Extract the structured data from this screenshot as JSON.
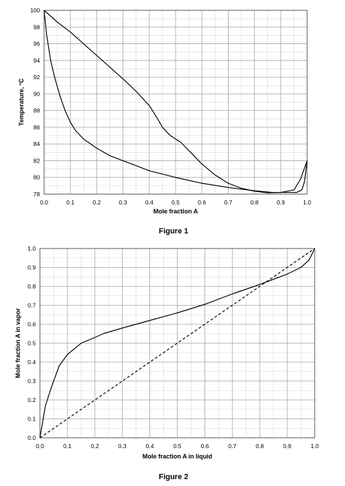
{
  "chart_data": [
    {
      "type": "line",
      "title": "",
      "caption": "Figure 1",
      "xlabel": "Mole fraction A",
      "ylabel": "Temperature, °C",
      "xlim": [
        0.0,
        1.0
      ],
      "ylim": [
        78,
        100
      ],
      "xticks": [
        0.0,
        0.1,
        0.2,
        0.3,
        0.4,
        0.5,
        0.6,
        0.7,
        0.8,
        0.9,
        1.0
      ],
      "xtick_labels": [
        "0.0",
        "0.1",
        "0.2",
        "0.3",
        "0.4",
        "0.5",
        "0.6",
        "0.7",
        "0.8",
        "0.9",
        "1.0"
      ],
      "yticks": [
        78,
        80,
        82,
        84,
        86,
        88,
        90,
        92,
        94,
        96,
        98,
        100
      ],
      "ytick_labels": [
        "78",
        "80",
        "82",
        "84",
        "86",
        "88",
        "90",
        "92",
        "94",
        "96",
        "98",
        "100"
      ],
      "grid": true,
      "series": [
        {
          "style": "solid",
          "color": "#000000",
          "points": [
            [
              0.0,
              100
            ],
            [
              0.05,
              98.6
            ],
            [
              0.1,
              97.4
            ],
            [
              0.15,
              96.0
            ],
            [
              0.2,
              94.6
            ],
            [
              0.25,
              93.2
            ],
            [
              0.3,
              91.8
            ],
            [
              0.35,
              90.3
            ],
            [
              0.4,
              88.6
            ],
            [
              0.43,
              87.1
            ],
            [
              0.45,
              86.0
            ],
            [
              0.48,
              85.0
            ],
            [
              0.52,
              84.2
            ],
            [
              0.56,
              82.9
            ],
            [
              0.6,
              81.6
            ],
            [
              0.65,
              80.3
            ],
            [
              0.7,
              79.3
            ],
            [
              0.75,
              78.7
            ],
            [
              0.8,
              78.35
            ],
            [
              0.85,
              78.15
            ],
            [
              0.9,
              78.2
            ],
            [
              0.95,
              78.5
            ],
            [
              0.975,
              79.8
            ],
            [
              1.0,
              82.0
            ]
          ]
        },
        {
          "style": "solid",
          "color": "#000000",
          "points": [
            [
              0.0,
              100
            ],
            [
              0.01,
              97
            ],
            [
              0.025,
              94
            ],
            [
              0.04,
              92
            ],
            [
              0.06,
              89.8
            ],
            [
              0.08,
              88.0
            ],
            [
              0.1,
              86.6
            ],
            [
              0.12,
              85.6
            ],
            [
              0.15,
              84.6
            ],
            [
              0.2,
              83.5
            ],
            [
              0.25,
              82.6
            ],
            [
              0.3,
              82.0
            ],
            [
              0.35,
              81.4
            ],
            [
              0.4,
              80.8
            ],
            [
              0.5,
              80.0
            ],
            [
              0.6,
              79.3
            ],
            [
              0.7,
              78.8
            ],
            [
              0.8,
              78.4
            ],
            [
              0.87,
              78.2
            ],
            [
              0.92,
              78.2
            ],
            [
              0.96,
              78.2
            ],
            [
              0.98,
              78.5
            ],
            [
              0.99,
              79.5
            ],
            [
              1.0,
              82.0
            ]
          ]
        }
      ]
    },
    {
      "type": "line",
      "title": "",
      "caption": "Figure 2",
      "xlabel": "Mole fraction A in liquid",
      "ylabel": "Mole fraction A in vapor",
      "xlim": [
        0.0,
        1.0
      ],
      "ylim": [
        0.0,
        1.0
      ],
      "xticks": [
        0.0,
        0.1,
        0.2,
        0.3,
        0.4,
        0.5,
        0.6,
        0.7,
        0.8,
        0.9,
        1.0
      ],
      "xtick_labels": [
        "0.0",
        "0.1",
        "0.2",
        "0.3",
        "0.4",
        "0.5",
        "0.6",
        "0.7",
        "0.8",
        "0.9",
        "1.0"
      ],
      "yticks": [
        0.0,
        0.1,
        0.2,
        0.3,
        0.4,
        0.5,
        0.6,
        0.7,
        0.8,
        0.9,
        1.0
      ],
      "ytick_labels": [
        "0.0",
        "0.1",
        "0.2",
        "0.3",
        "0.4",
        "0.5",
        "0.6",
        "0.7",
        "0.8",
        "0.9",
        "1.0"
      ],
      "grid": true,
      "series": [
        {
          "style": "solid",
          "color": "#000000",
          "points": [
            [
              0.0,
              0.0
            ],
            [
              0.02,
              0.17
            ],
            [
              0.04,
              0.26
            ],
            [
              0.07,
              0.38
            ],
            [
              0.1,
              0.44
            ],
            [
              0.15,
              0.5
            ],
            [
              0.2,
              0.53
            ],
            [
              0.23,
              0.55
            ],
            [
              0.3,
              0.58
            ],
            [
              0.4,
              0.62
            ],
            [
              0.5,
              0.66
            ],
            [
              0.6,
              0.705
            ],
            [
              0.7,
              0.76
            ],
            [
              0.8,
              0.81
            ],
            [
              0.9,
              0.865
            ],
            [
              0.95,
              0.9
            ],
            [
              0.98,
              0.94
            ],
            [
              1.0,
              1.0
            ]
          ]
        },
        {
          "style": "dashed",
          "color": "#000000",
          "points": [
            [
              0.0,
              0.0
            ],
            [
              1.0,
              1.0
            ]
          ]
        }
      ]
    }
  ]
}
